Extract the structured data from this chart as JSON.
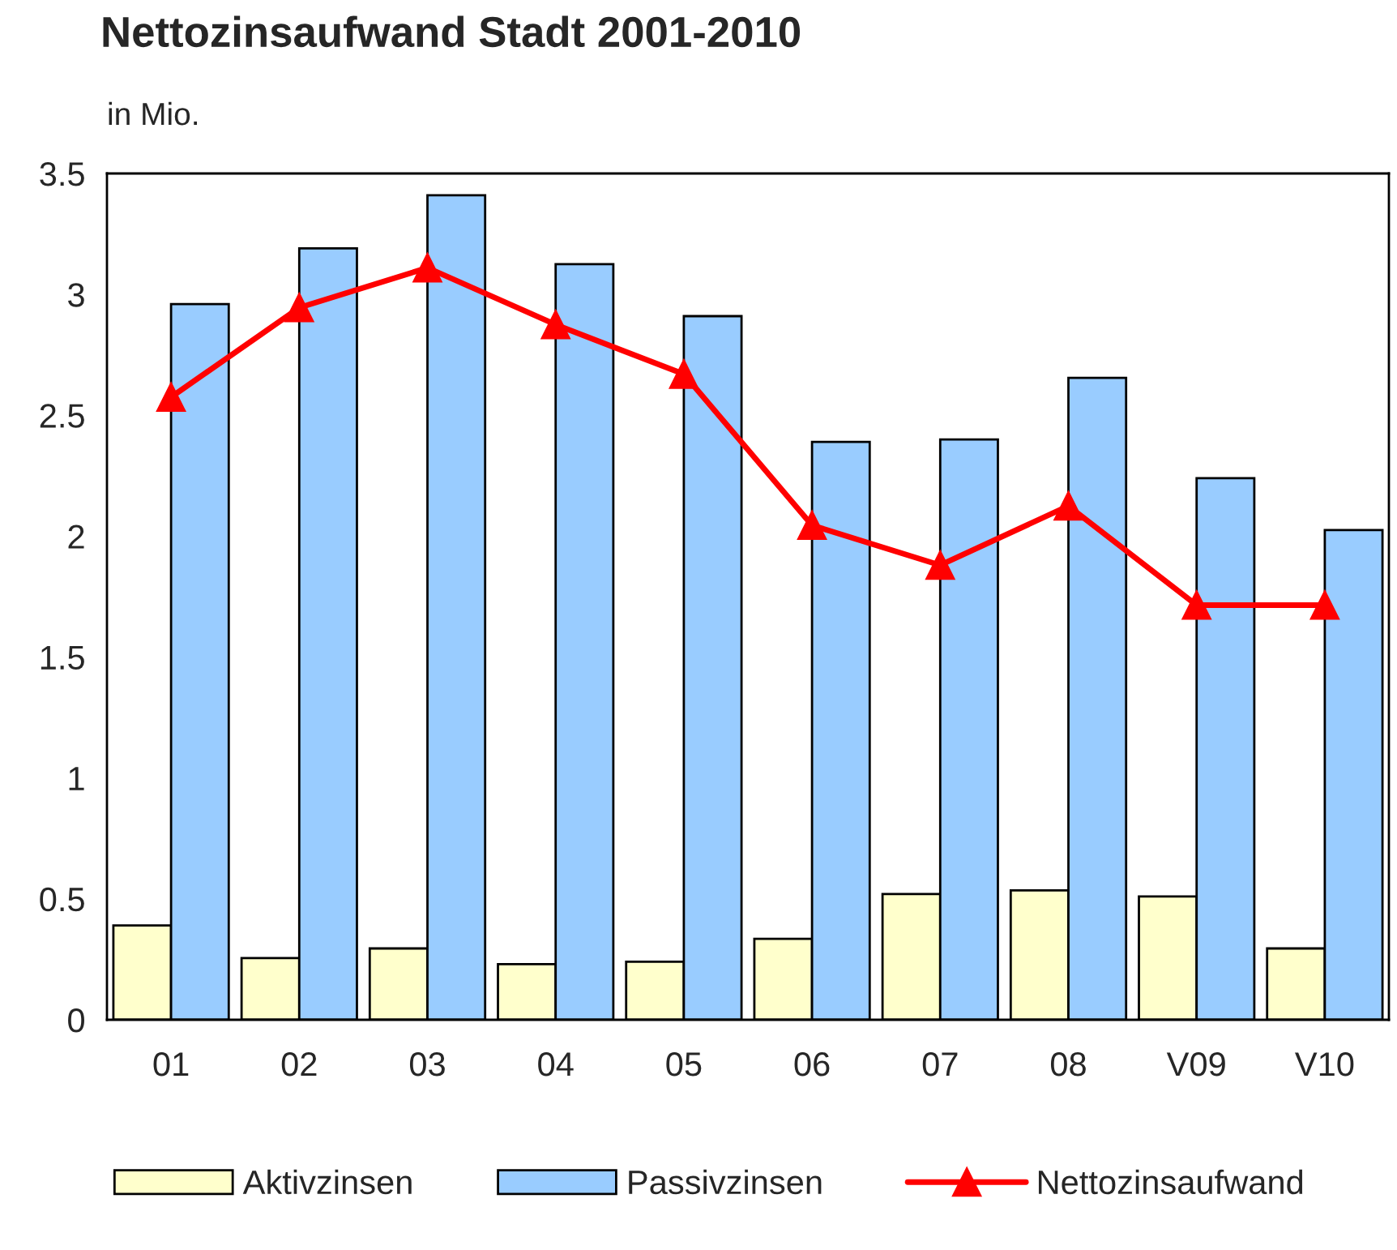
{
  "chart_data": {
    "type": "bar",
    "title": "Nettozinsaufwand Stadt 2001-2010",
    "subtitle": "in Mio.",
    "categories": [
      "01",
      "02",
      "03",
      "04",
      "05",
      "06",
      "07",
      "08",
      "V09",
      "V10"
    ],
    "series": [
      {
        "name": "Aktivzinsen",
        "color": "#ffffcc",
        "values": [
          0.39,
          0.255,
          0.295,
          0.23,
          0.24,
          0.335,
          0.52,
          0.535,
          0.51,
          0.295
        ]
      },
      {
        "name": "Passivzinsen",
        "color": "#99ccff",
        "values": [
          2.96,
          3.19,
          3.41,
          3.125,
          2.91,
          2.39,
          2.4,
          2.655,
          2.24,
          2.025
        ]
      },
      {
        "name": "Nettozinsaufwand",
        "type": "line",
        "color": "#ff0000",
        "marker": "triangle",
        "values": [
          2.575,
          2.945,
          3.11,
          2.875,
          2.67,
          2.045,
          1.88,
          2.125,
          1.715,
          1.715
        ]
      }
    ],
    "ylim": [
      0,
      3.5
    ],
    "yticks": [
      0,
      0.5,
      1,
      1.5,
      2,
      2.5,
      3,
      3.5
    ],
    "grid": false,
    "legend": "bottom"
  }
}
